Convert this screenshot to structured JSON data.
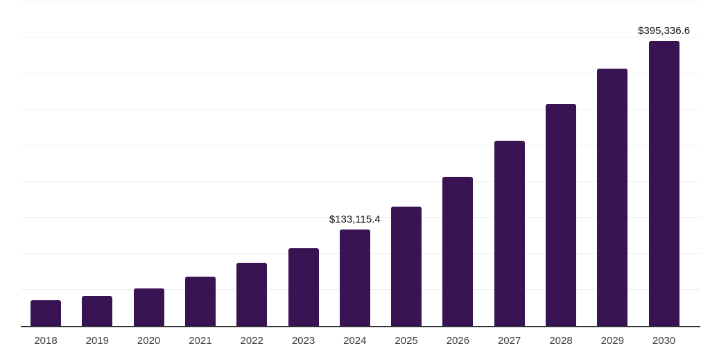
{
  "chart_data": {
    "type": "bar",
    "title": "",
    "xlabel": "",
    "ylabel": "",
    "categories": [
      "2018",
      "2019",
      "2020",
      "2021",
      "2022",
      "2023",
      "2024",
      "2025",
      "2026",
      "2027",
      "2028",
      "2029",
      "2030"
    ],
    "values": [
      34700,
      41000,
      51600,
      67400,
      87000,
      106900,
      133115.4,
      165300,
      206700,
      256700,
      308000,
      356600,
      395336.6
    ],
    "annotations": [
      {
        "index": 6,
        "text": "$133,115.4"
      },
      {
        "index": 12,
        "text": "$395,336.6"
      }
    ],
    "ylim": [
      0,
      450000
    ],
    "gridline_interval": 50000,
    "grid": true,
    "legend": false,
    "y_axis_labels_visible": false,
    "colors": {
      "bar": "#381452",
      "gridline": "#f0f0f2",
      "axis_line": "#333333",
      "tick_label": "#3d3d3d",
      "annotation_text": "#111111",
      "background": "#ffffff"
    }
  }
}
